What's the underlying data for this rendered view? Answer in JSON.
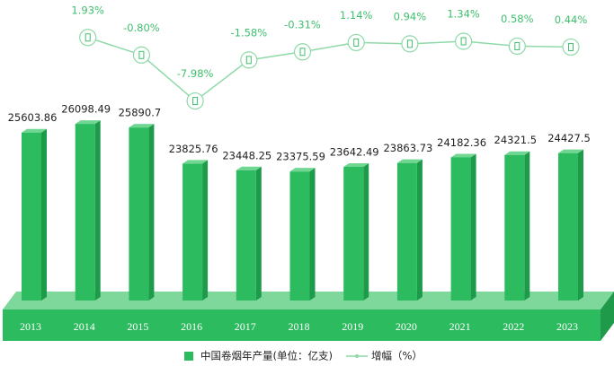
{
  "chart_data": {
    "type": "combo",
    "categories": [
      "2013",
      "2014",
      "2015",
      "2016",
      "2017",
      "2018",
      "2019",
      "2020",
      "2021",
      "2022",
      "2023"
    ],
    "series": [
      {
        "name": "中国卷烟年产量(单位：亿支)",
        "type": "bar",
        "color": "#2dbb5f",
        "values": [
          25603.86,
          26098.49,
          25890.7,
          23825.76,
          23448.25,
          23375.59,
          23642.49,
          23863.73,
          24182.36,
          24321.5,
          24427.5
        ]
      },
      {
        "name": "增幅（%）",
        "type": "line",
        "axis": "y2",
        "color": "#8fd9a8",
        "values": [
          null,
          1.93,
          -0.8,
          -7.98,
          -1.58,
          -0.31,
          1.14,
          0.94,
          1.34,
          0.58,
          0.44
        ],
        "value_labels": [
          null,
          "1.93%",
          "-0.80%",
          "-7.98%",
          "-1.58%",
          "-0.31%",
          "1.14%",
          "0.94%",
          "1.34%",
          "0.58%",
          "0.44%"
        ]
      }
    ],
    "ylim": [
      16000,
      28000
    ],
    "y2lim": [
      -10,
      4
    ],
    "legend": "bottom"
  }
}
